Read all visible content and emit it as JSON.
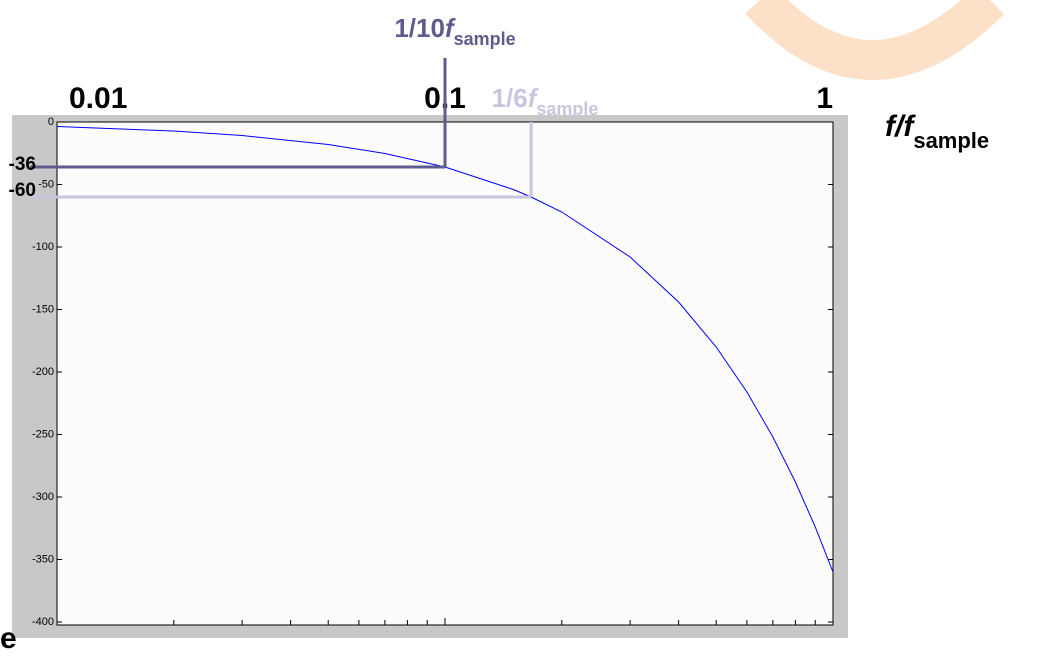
{
  "chart_data": {
    "type": "line",
    "xlog": true,
    "xlim": [
      0.01,
      1
    ],
    "ylim": [
      -400,
      0
    ],
    "xticks": [
      0.01,
      0.1,
      1
    ],
    "xminorticks": [
      0.02,
      0.03,
      0.04,
      0.05,
      0.06,
      0.07,
      0.08,
      0.09,
      0.2,
      0.3,
      0.4,
      0.5,
      0.6,
      0.7,
      0.8,
      0.9
    ],
    "yticks": [
      0,
      -50,
      -100,
      -150,
      -200,
      -250,
      -300,
      -350,
      -400
    ],
    "xlabel": {
      "text": "f/f",
      "sub": "sample"
    },
    "x": [
      0.01,
      0.02,
      0.03,
      0.05,
      0.07,
      0.1,
      0.15,
      0.1667,
      0.2,
      0.3,
      0.4,
      0.5,
      0.6,
      0.7,
      0.8,
      0.9,
      1
    ],
    "series": [
      {
        "color": "#0000ff",
        "values": [
          -3.6,
          -7.2,
          -10.8,
          -18,
          -25.2,
          -36,
          -54,
          -60,
          -72,
          -108,
          -144,
          -180,
          -216,
          -252,
          -288,
          -324,
          -360
        ]
      }
    ],
    "annotations": [
      {
        "label": "1/10",
        "var": "f",
        "sub": "sample",
        "x": 0.1,
        "y": -36,
        "color": "#5c5c8e"
      },
      {
        "label": "1/6",
        "var": "f",
        "sub": "sample",
        "x": 0.1667,
        "y": -60,
        "color": "#c6c6df"
      }
    ],
    "fragment": "e"
  }
}
